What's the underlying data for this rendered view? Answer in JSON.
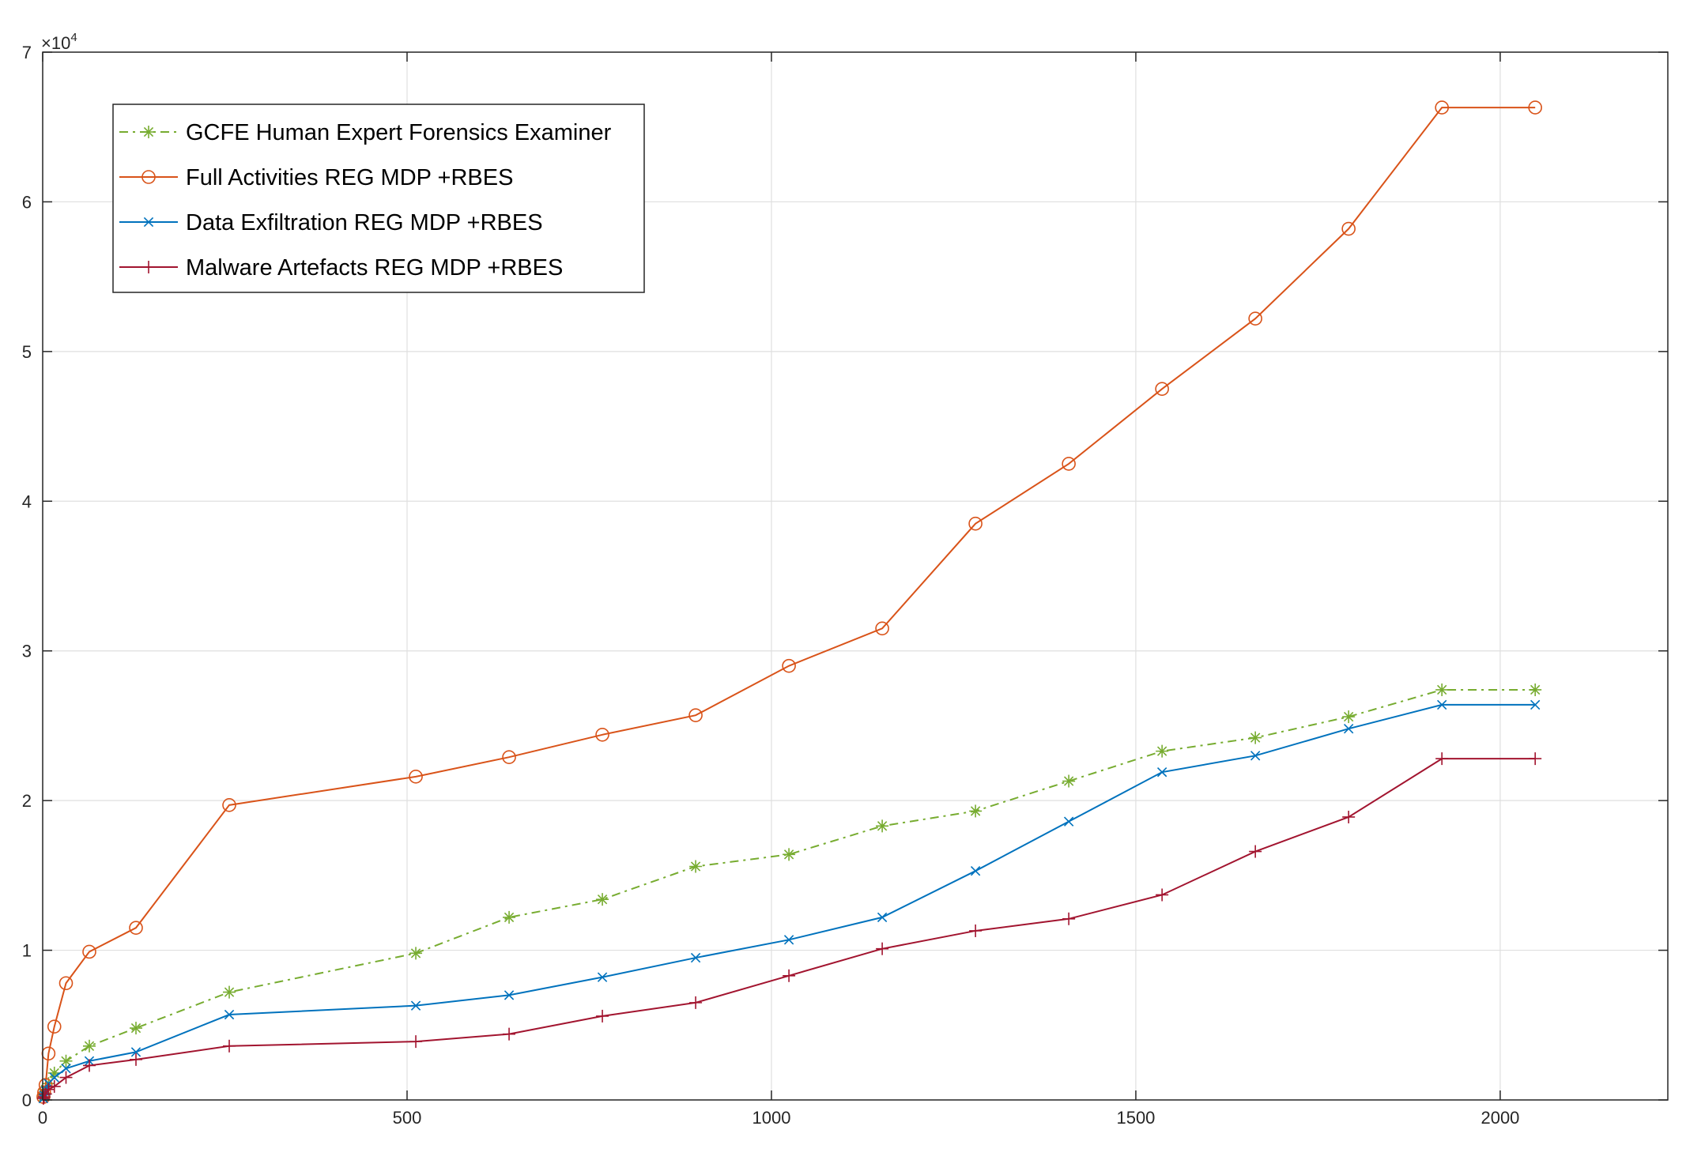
{
  "chart_data": {
    "type": "line",
    "title": "",
    "xlabel": "",
    "ylabel": "",
    "xlim": [
      0,
      2230
    ],
    "ylim": [
      0,
      70000
    ],
    "x_ticks": [
      0,
      500,
      1000,
      1500,
      2000
    ],
    "x_tick_labels": [
      "0",
      "500",
      "1000",
      "1500",
      "2000"
    ],
    "y_ticks": [
      0,
      10000,
      20000,
      30000,
      40000,
      50000,
      60000,
      70000
    ],
    "y_tick_labels": [
      "0",
      "1",
      "2",
      "3",
      "4",
      "5",
      "6",
      "7"
    ],
    "y_exponent": {
      "base": "×10",
      "power": "4"
    },
    "grid": true,
    "legend_position": "top-left",
    "x": [
      1,
      2,
      4,
      8,
      16,
      32,
      64,
      128,
      256,
      512,
      640,
      768,
      896,
      1024,
      1152,
      1280,
      1408,
      1536,
      1664,
      1792,
      1920,
      2048
    ],
    "series": [
      {
        "name": "GCFE Human Expert Forensics Examiner",
        "color": "#77ac30",
        "line_style": "dashdot",
        "marker": "asterisk",
        "values": [
          200,
          400,
          700,
          1100,
          1800,
          2600,
          3600,
          4800,
          7200,
          9800,
          12200,
          13400,
          15600,
          16400,
          18300,
          19300,
          21300,
          23300,
          24200,
          25600,
          27400,
          27400
        ]
      },
      {
        "name": "Full Activities REG MDP +RBES",
        "color": "#d95319",
        "line_style": "solid",
        "marker": "circle",
        "values": [
          200,
          500,
          1000,
          3100,
          4900,
          7800,
          9900,
          11500,
          19700,
          21600,
          22900,
          24400,
          25700,
          29000,
          31500,
          38500,
          42500,
          47500,
          52200,
          58200,
          66300,
          66300
        ]
      },
      {
        "name": "Data Exfiltration REG MDP +RBES",
        "color": "#0072bd",
        "line_style": "solid",
        "marker": "x",
        "values": [
          100,
          300,
          600,
          1100,
          1500,
          2100,
          2600,
          3200,
          5700,
          6300,
          7000,
          8200,
          9500,
          10700,
          12200,
          15300,
          18600,
          21900,
          23000,
          24800,
          26400,
          26400
        ]
      },
      {
        "name": "Malware Artefacts REG MDP +RBES",
        "color": "#a2142f",
        "line_style": "solid",
        "marker": "plus",
        "values": [
          100,
          200,
          400,
          700,
          900,
          1500,
          2300,
          2700,
          3600,
          3900,
          4400,
          5600,
          6500,
          8300,
          10100,
          11300,
          12100,
          13700,
          16600,
          18900,
          22800,
          22800
        ]
      }
    ]
  }
}
